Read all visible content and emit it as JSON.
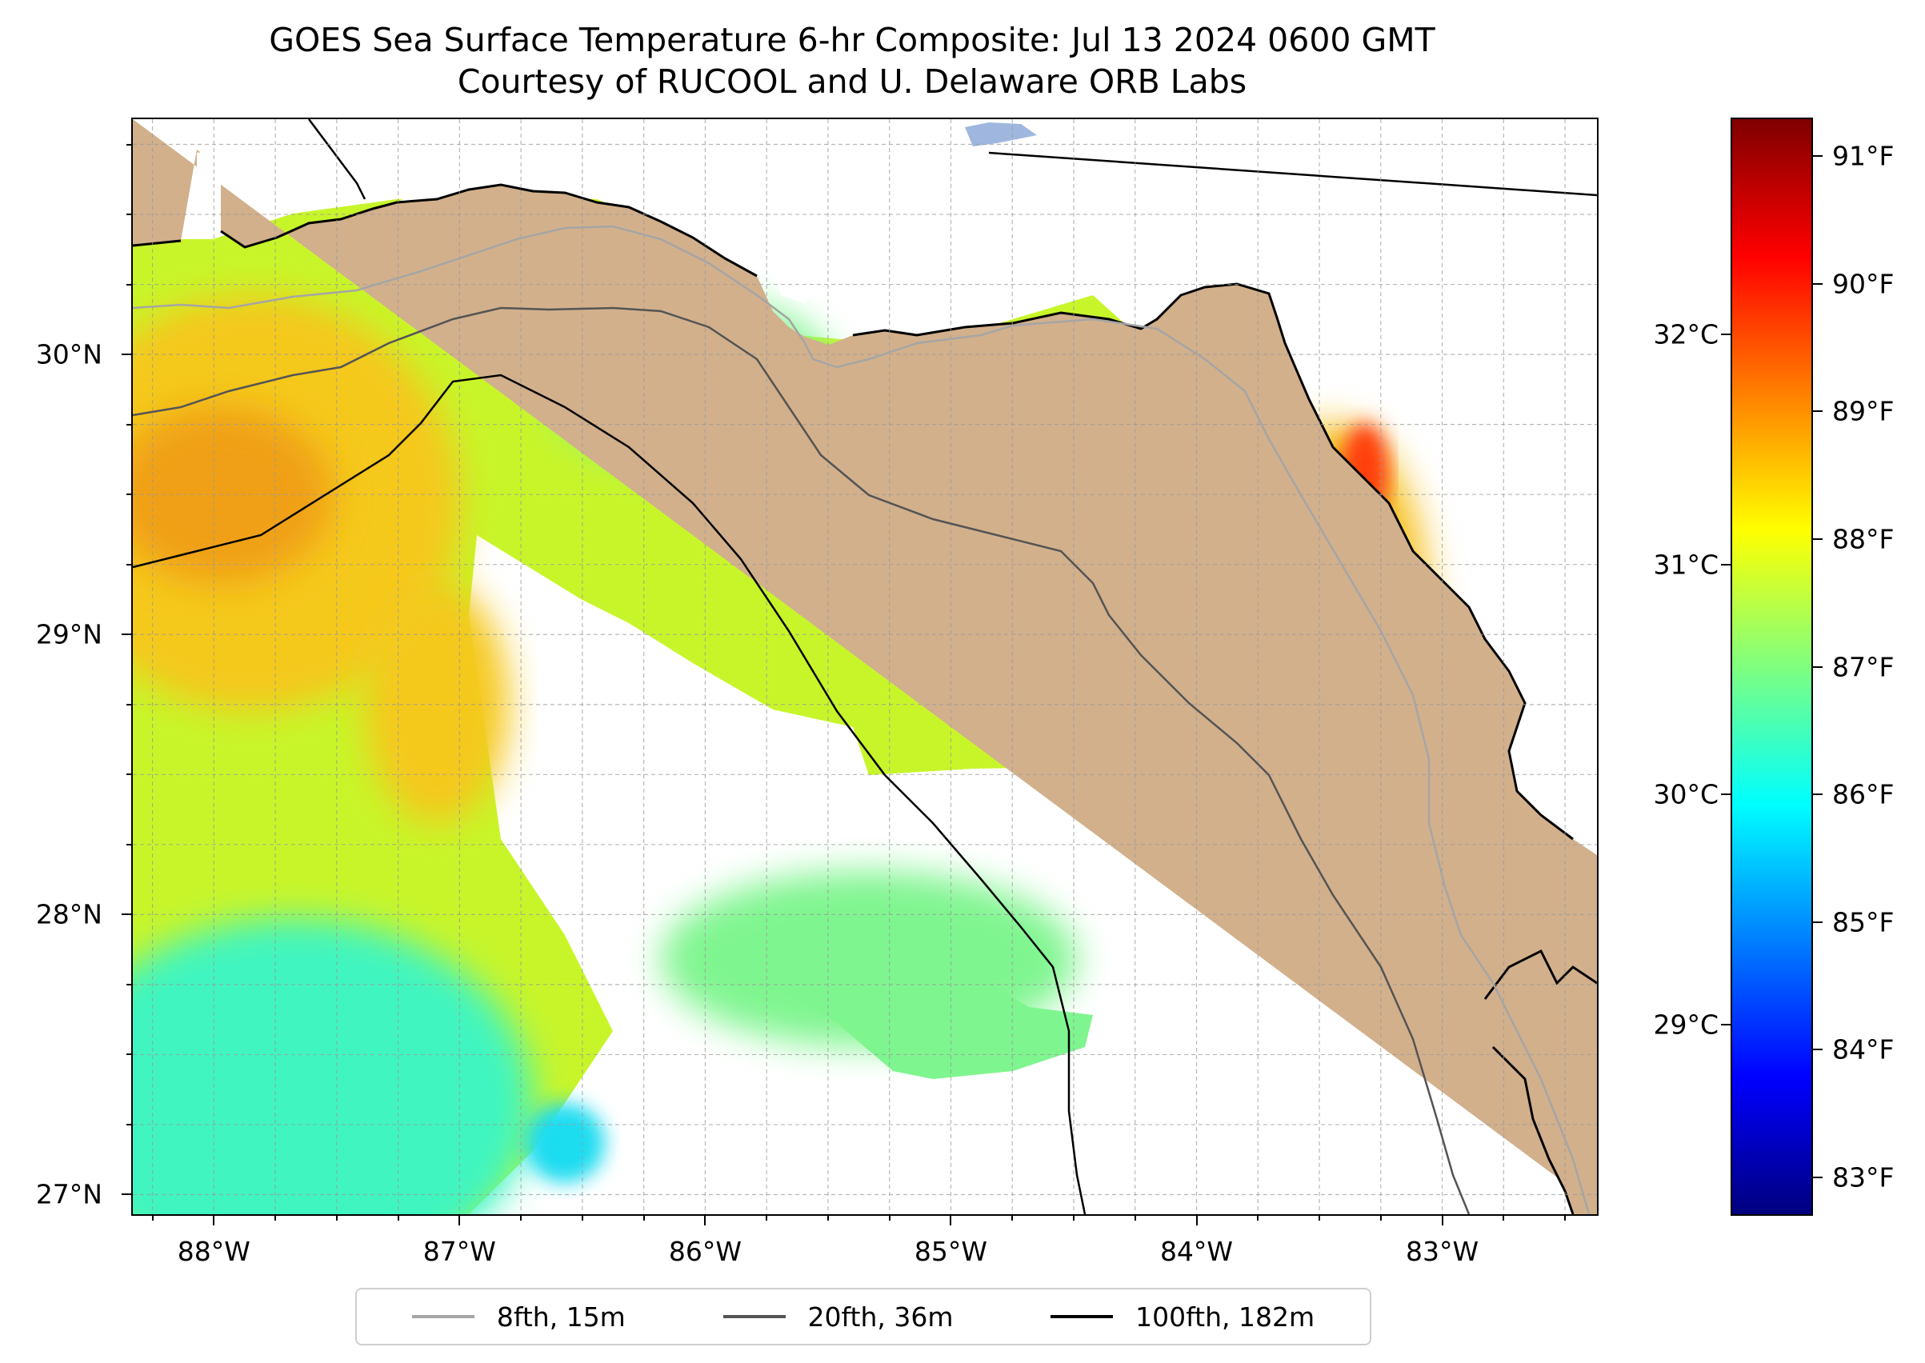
{
  "map": {
    "title": "GOES Sea Surface Temperature 6-hr Composite: Jul 13 2024 0600 GMT",
    "subtitle": "Courtesy of RUCOOL and U. Delaware ORB Labs",
    "extent": {
      "lon": [
        -88.33,
        -82.37
      ],
      "lat": [
        26.93,
        30.84
      ]
    },
    "x_ticks": [
      {
        "lon": -88,
        "label": "88°W"
      },
      {
        "lon": -87,
        "label": "87°W"
      },
      {
        "lon": -86,
        "label": "86°W"
      },
      {
        "lon": -85,
        "label": "85°W"
      },
      {
        "lon": -84,
        "label": "84°W"
      },
      {
        "lon": -83,
        "label": "83°W"
      }
    ],
    "y_ticks": [
      {
        "lat": 27,
        "label": "27°N"
      },
      {
        "lat": 28,
        "label": "28°N"
      },
      {
        "lat": 29,
        "label": "29°N"
      },
      {
        "lat": 30,
        "label": "30°N"
      }
    ],
    "gridlines": "dashed gray every 0.25°",
    "colors": {
      "land": "#d2b08c",
      "lake": "#9fb7de",
      "no_data": "#ffffff",
      "coastline": "#000000"
    },
    "isobaths": [
      {
        "name": "8fth, 15m",
        "color": "#a5a5a5"
      },
      {
        "name": "20fth, 36m",
        "color": "#545454"
      },
      {
        "name": "100fth, 182m",
        "color": "#000000"
      }
    ],
    "sst_regions": {
      "base": "#c8f52a",
      "warm_west": "#f5c81e",
      "hot_west": "#f0a016",
      "cool_southwest": "#3ff5c0",
      "coolest_southwest": "#1adcf0",
      "cool_central": "#7ff58f",
      "warm_east": "#f5c01e",
      "hot_east": "#ff4010"
    }
  },
  "colorbar": {
    "colormap": "jet",
    "fahrenheit_range": [
      82.7,
      91.3
    ],
    "fahrenheit_ticks": [
      {
        "value": 83,
        "label": "83°F"
      },
      {
        "value": 84,
        "label": "84°F"
      },
      {
        "value": 85,
        "label": "85°F"
      },
      {
        "value": 86,
        "label": "86°F"
      },
      {
        "value": 87,
        "label": "87°F"
      },
      {
        "value": 88,
        "label": "88°F"
      },
      {
        "value": 89,
        "label": "89°F"
      },
      {
        "value": 90,
        "label": "90°F"
      },
      {
        "value": 91,
        "label": "91°F"
      }
    ],
    "celsius_ticks": [
      {
        "value": 29,
        "label": "29°C"
      },
      {
        "value": 30,
        "label": "30°C"
      },
      {
        "value": 31,
        "label": "31°C"
      },
      {
        "value": 32,
        "label": "32°C"
      }
    ]
  },
  "legend": {
    "placement": "bottom-center",
    "items": [
      {
        "label": "8fth, 15m",
        "color": "#a5a5a5"
      },
      {
        "label": "20fth, 36m",
        "color": "#545454"
      },
      {
        "label": "100fth, 182m",
        "color": "#000000"
      }
    ]
  }
}
